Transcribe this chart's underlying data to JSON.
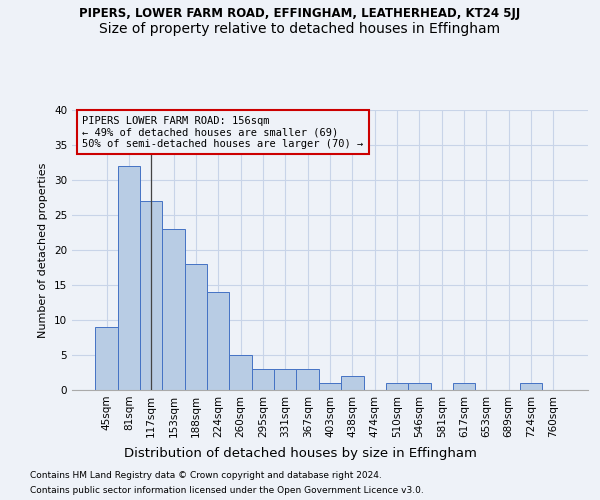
{
  "title": "PIPERS, LOWER FARM ROAD, EFFINGHAM, LEATHERHEAD, KT24 5JJ",
  "subtitle": "Size of property relative to detached houses in Effingham",
  "xlabel": "Distribution of detached houses by size in Effingham",
  "ylabel": "Number of detached properties",
  "categories": [
    "45sqm",
    "81sqm",
    "117sqm",
    "153sqm",
    "188sqm",
    "224sqm",
    "260sqm",
    "295sqm",
    "331sqm",
    "367sqm",
    "403sqm",
    "438sqm",
    "474sqm",
    "510sqm",
    "546sqm",
    "581sqm",
    "617sqm",
    "653sqm",
    "689sqm",
    "724sqm",
    "760sqm"
  ],
  "values": [
    9,
    32,
    27,
    23,
    18,
    14,
    5,
    3,
    3,
    3,
    1,
    2,
    0,
    1,
    1,
    0,
    1,
    0,
    0,
    1,
    0
  ],
  "bar_color": "#b8cce4",
  "bar_edge_color": "#4472c4",
  "annotation_line1": "PIPERS LOWER FARM ROAD: 156sqm",
  "annotation_line2": "← 49% of detached houses are smaller (69)",
  "annotation_line3": "50% of semi-detached houses are larger (70) →",
  "annotation_box_color": "#cc0000",
  "ylim": [
    0,
    40
  ],
  "yticks": [
    0,
    5,
    10,
    15,
    20,
    25,
    30,
    35,
    40
  ],
  "grid_color": "#c8d4e8",
  "background_color": "#eef2f8",
  "footer_line1": "Contains HM Land Registry data © Crown copyright and database right 2024.",
  "footer_line2": "Contains public sector information licensed under the Open Government Licence v3.0.",
  "title_fontsize": 8.5,
  "subtitle_fontsize": 10,
  "xlabel_fontsize": 9.5,
  "ylabel_fontsize": 8,
  "tick_fontsize": 7.5,
  "annotation_fontsize": 7.5,
  "footer_fontsize": 6.5
}
